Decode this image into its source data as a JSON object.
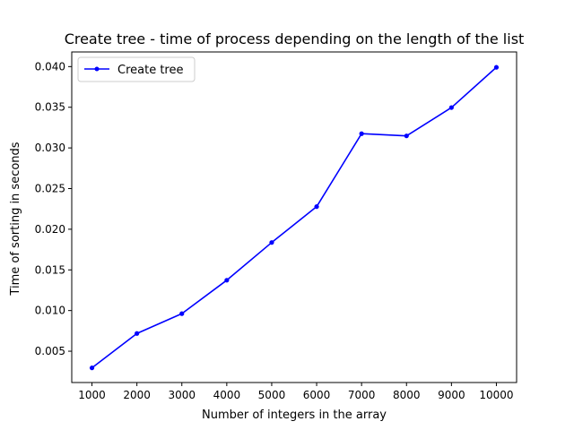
{
  "chart_data": {
    "type": "line",
    "title": "Create tree - time of process depending on the length of the list",
    "xlabel": "Number of integers in the array",
    "ylabel": "Time of sorting in seconds",
    "x": [
      1000,
      2000,
      3000,
      4000,
      5000,
      6000,
      7000,
      8000,
      9000,
      10000
    ],
    "series": [
      {
        "name": "Create tree",
        "color": "#0000ff",
        "marker": "dot",
        "values": [
          0.00295,
          0.00718,
          0.00962,
          0.01373,
          0.01837,
          0.02278,
          0.03175,
          0.03148,
          0.03496,
          0.03991
        ]
      }
    ],
    "xlim": [
      550,
      10450
    ],
    "ylim": [
      0.00115,
      0.0418
    ],
    "xticks": [
      1000,
      2000,
      3000,
      4000,
      5000,
      6000,
      7000,
      8000,
      9000,
      10000
    ],
    "xtick_labels": [
      "1000",
      "2000",
      "3000",
      "4000",
      "5000",
      "6000",
      "7000",
      "8000",
      "9000",
      "10000"
    ],
    "yticks": [
      0.005,
      0.01,
      0.015,
      0.02,
      0.025,
      0.03,
      0.035,
      0.04
    ],
    "ytick_labels": [
      "0.005",
      "0.010",
      "0.015",
      "0.020",
      "0.025",
      "0.030",
      "0.035",
      "0.040"
    ],
    "grid": false,
    "legend_position": "top-left"
  }
}
